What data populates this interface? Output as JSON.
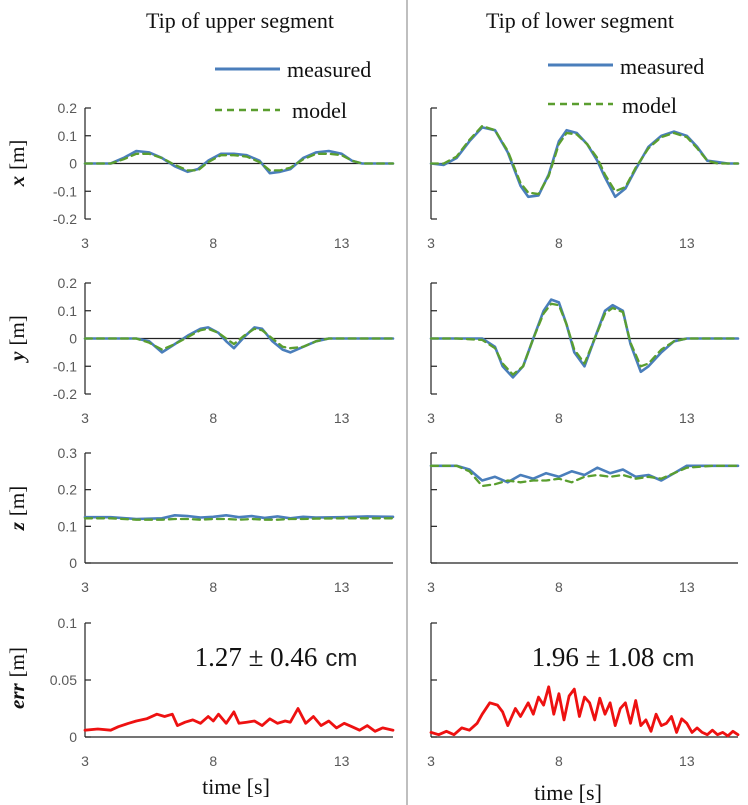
{
  "columns": [
    {
      "title": "Tip of upper segment"
    },
    {
      "title": "Tip of lower segment"
    }
  ],
  "xlabel": "time [s]",
  "legend": {
    "measured": "measured",
    "model": "model"
  },
  "colors": {
    "measured": "#4a7ebb",
    "model": "#5a9e2f",
    "error": "#ee1111",
    "divider": "#bfbfbf",
    "axis": "#222222",
    "tick": "#595959"
  },
  "row_labels": [
    {
      "var": "x",
      "unit": "[m]"
    },
    {
      "var": "y",
      "unit": "[m]"
    },
    {
      "var": "z",
      "unit": "[m]"
    },
    {
      "var": "err",
      "unit": "[m]"
    }
  ],
  "annotations": [
    {
      "value": "1.27 ± 0.46",
      "unit": "cm"
    },
    {
      "value": "1.96 ± 1.08",
      "unit": "cm"
    }
  ],
  "chart_data": [
    {
      "type": "line",
      "panel": "x-upper",
      "xlim": [
        3,
        15
      ],
      "ylim": [
        -0.2,
        0.2
      ],
      "xticks": [
        "3",
        "8",
        "13"
      ],
      "yticks": [
        "0.2",
        "0.1",
        "0",
        "-0.1",
        "-0.2"
      ],
      "legend": "top-right",
      "series": [
        {
          "name": "measured",
          "x": [
            3,
            4,
            4.5,
            5,
            5.5,
            6,
            6.5,
            7,
            7.4,
            7.8,
            8.3,
            8.8,
            9.3,
            9.8,
            10.2,
            10.6,
            11,
            11.5,
            12,
            12.5,
            13,
            13.4,
            13.8,
            14.2,
            14.6,
            15
          ],
          "y": [
            0,
            0,
            0.02,
            0.045,
            0.04,
            0.02,
            -0.01,
            -0.03,
            -0.02,
            0.01,
            0.035,
            0.035,
            0.03,
            0.01,
            -0.035,
            -0.03,
            -0.02,
            0.02,
            0.04,
            0.045,
            0.035,
            0.01,
            0,
            0,
            0,
            0
          ]
        },
        {
          "name": "model",
          "x": [
            3,
            4,
            4.5,
            5,
            5.5,
            6,
            6.5,
            7,
            7.4,
            7.8,
            8.3,
            8.8,
            9.3,
            9.8,
            10.2,
            10.6,
            11,
            11.5,
            12,
            12.5,
            13,
            13.4,
            13.8,
            14.2,
            14.6,
            15
          ],
          "y": [
            0,
            0,
            0.015,
            0.035,
            0.035,
            0.02,
            -0.005,
            -0.025,
            -0.025,
            0.005,
            0.03,
            0.03,
            0.025,
            0.005,
            -0.025,
            -0.025,
            -0.015,
            0.015,
            0.035,
            0.035,
            0.03,
            0.01,
            0,
            0,
            0,
            0
          ]
        }
      ]
    },
    {
      "type": "line",
      "panel": "x-lower",
      "xlim": [
        3,
        15
      ],
      "ylim": [
        -0.2,
        0.2
      ],
      "xticks": [
        "3",
        "8",
        "13"
      ],
      "yticks": [],
      "legend": "top-right",
      "series": [
        {
          "name": "measured",
          "x": [
            3,
            3.5,
            4,
            4.5,
            5,
            5.5,
            6,
            6.5,
            6.8,
            7.2,
            7.6,
            8,
            8.3,
            8.7,
            9.1,
            9.5,
            9.8,
            10.2,
            10.6,
            11,
            11.5,
            12,
            12.5,
            13,
            13.4,
            13.8,
            14.2,
            14.6,
            15
          ],
          "y": [
            0,
            -0.005,
            0.02,
            0.08,
            0.13,
            0.12,
            0.04,
            -0.08,
            -0.12,
            -0.115,
            -0.04,
            0.08,
            0.12,
            0.11,
            0.07,
            0.01,
            -0.05,
            -0.12,
            -0.09,
            -0.02,
            0.06,
            0.1,
            0.115,
            0.1,
            0.06,
            0.01,
            0.005,
            0,
            0
          ]
        },
        {
          "name": "model",
          "x": [
            3,
            3.5,
            4,
            4.5,
            5,
            5.5,
            6,
            6.5,
            6.8,
            7.2,
            7.6,
            8,
            8.3,
            8.7,
            9.1,
            9.5,
            9.8,
            10.2,
            10.6,
            11,
            11.5,
            12,
            12.5,
            13,
            13.4,
            13.8,
            14.2,
            14.6,
            15
          ],
          "y": [
            0,
            0,
            0.025,
            0.085,
            0.135,
            0.12,
            0.045,
            -0.07,
            -0.105,
            -0.11,
            -0.045,
            0.07,
            0.11,
            0.105,
            0.07,
            0.02,
            -0.04,
            -0.1,
            -0.085,
            -0.015,
            0.055,
            0.095,
            0.11,
            0.095,
            0.055,
            0.01,
            0,
            0,
            0
          ]
        }
      ]
    },
    {
      "type": "line",
      "panel": "y-upper",
      "xlim": [
        3,
        15
      ],
      "ylim": [
        -0.2,
        0.2
      ],
      "xticks": [
        "3",
        "8",
        "13"
      ],
      "yticks": [
        "0.2",
        "0.1",
        "0",
        "-0.1",
        "-0.2"
      ],
      "series": [
        {
          "name": "measured",
          "x": [
            3,
            4,
            5,
            5.5,
            6,
            6.5,
            7,
            7.5,
            7.8,
            8.2,
            8.5,
            8.8,
            9.2,
            9.6,
            9.9,
            10.3,
            10.7,
            11,
            11.5,
            12,
            12.5,
            13,
            13.5,
            14,
            14.5,
            15
          ],
          "y": [
            0,
            0,
            0,
            -0.01,
            -0.05,
            -0.02,
            0.01,
            0.035,
            0.04,
            0.02,
            -0.01,
            -0.035,
            0.005,
            0.04,
            0.035,
            -0.01,
            -0.04,
            -0.05,
            -0.03,
            -0.01,
            0,
            0,
            0,
            0,
            0,
            0
          ]
        },
        {
          "name": "model",
          "x": [
            3,
            4,
            5,
            5.5,
            6,
            6.5,
            7,
            7.5,
            7.8,
            8.2,
            8.5,
            8.8,
            9.2,
            9.6,
            9.9,
            10.3,
            10.7,
            11,
            11.5,
            12,
            12.5,
            13,
            13.5,
            14,
            14.5,
            15
          ],
          "y": [
            0,
            0,
            0,
            -0.015,
            -0.04,
            -0.02,
            0.005,
            0.03,
            0.035,
            0.02,
            0,
            -0.02,
            0.01,
            0.035,
            0.03,
            0,
            -0.03,
            -0.035,
            -0.03,
            -0.01,
            0,
            0,
            0,
            0,
            0,
            0
          ]
        }
      ]
    },
    {
      "type": "line",
      "panel": "y-lower",
      "xlim": [
        3,
        15
      ],
      "ylim": [
        -0.2,
        0.2
      ],
      "xticks": [
        "3",
        "8",
        "13"
      ],
      "yticks": [],
      "series": [
        {
          "name": "measured",
          "x": [
            3,
            4,
            5,
            5.5,
            5.8,
            6.2,
            6.6,
            7,
            7.4,
            7.7,
            8,
            8.3,
            8.6,
            9,
            9.4,
            9.8,
            10.1,
            10.5,
            10.8,
            11.2,
            11.5,
            12,
            12.5,
            13,
            13.5,
            14,
            14.5,
            15
          ],
          "y": [
            0,
            0,
            0,
            -0.03,
            -0.1,
            -0.14,
            -0.1,
            0,
            0.1,
            0.14,
            0.13,
            0.05,
            -0.05,
            -0.1,
            0,
            0.1,
            0.12,
            0.1,
            -0.02,
            -0.12,
            -0.1,
            -0.05,
            -0.01,
            0,
            0,
            0,
            0,
            0
          ]
        },
        {
          "name": "model",
          "x": [
            3,
            4,
            5,
            5.5,
            5.8,
            6.2,
            6.6,
            7,
            7.4,
            7.7,
            8,
            8.3,
            8.6,
            9,
            9.4,
            9.8,
            10.1,
            10.5,
            10.8,
            11.2,
            11.5,
            12,
            12.5,
            13,
            13.5,
            14,
            14.5,
            15
          ],
          "y": [
            0,
            0,
            -0.005,
            -0.035,
            -0.09,
            -0.13,
            -0.1,
            0,
            0.09,
            0.125,
            0.12,
            0.05,
            -0.04,
            -0.09,
            0,
            0.09,
            0.11,
            0.095,
            -0.015,
            -0.1,
            -0.09,
            -0.04,
            -0.01,
            0,
            0,
            0,
            0,
            0
          ]
        }
      ]
    },
    {
      "type": "line",
      "panel": "z-upper",
      "xlim": [
        3,
        15
      ],
      "ylim": [
        0,
        0.3
      ],
      "xticks": [
        "3",
        "8",
        "13"
      ],
      "yticks": [
        "0.3",
        "0.2",
        "0.1",
        "0"
      ],
      "series": [
        {
          "name": "measured",
          "x": [
            3,
            4,
            5,
            6,
            6.5,
            7,
            7.5,
            8,
            8.5,
            9,
            9.5,
            10,
            10.5,
            11,
            11.5,
            12,
            13,
            14,
            15
          ],
          "y": [
            0.125,
            0.125,
            0.12,
            0.122,
            0.13,
            0.128,
            0.124,
            0.126,
            0.13,
            0.125,
            0.128,
            0.123,
            0.127,
            0.122,
            0.126,
            0.124,
            0.125,
            0.127,
            0.126
          ]
        },
        {
          "name": "model",
          "x": [
            3,
            4,
            5,
            6,
            6.5,
            7,
            7.5,
            8,
            8.5,
            9,
            9.5,
            10,
            10.5,
            11,
            11.5,
            12,
            13,
            14,
            15
          ],
          "y": [
            0.122,
            0.122,
            0.118,
            0.118,
            0.12,
            0.12,
            0.118,
            0.12,
            0.12,
            0.118,
            0.12,
            0.118,
            0.118,
            0.12,
            0.12,
            0.121,
            0.122,
            0.122,
            0.122
          ]
        }
      ]
    },
    {
      "type": "line",
      "panel": "z-lower",
      "xlim": [
        3,
        15
      ],
      "ylim": [
        0,
        0.3
      ],
      "xticks": [
        "3",
        "8",
        "13"
      ],
      "yticks": [],
      "series": [
        {
          "name": "measured",
          "x": [
            3,
            4,
            4.5,
            5,
            5.5,
            6,
            6.5,
            7,
            7.5,
            8,
            8.5,
            9,
            9.5,
            10,
            10.5,
            11,
            11.5,
            12,
            12.5,
            13,
            14,
            15
          ],
          "y": [
            0.265,
            0.265,
            0.255,
            0.225,
            0.235,
            0.22,
            0.24,
            0.23,
            0.245,
            0.235,
            0.25,
            0.24,
            0.26,
            0.245,
            0.255,
            0.235,
            0.24,
            0.225,
            0.245,
            0.265,
            0.265,
            0.265
          ]
        },
        {
          "name": "model",
          "x": [
            3,
            4,
            4.5,
            5,
            5.5,
            6,
            6.5,
            7,
            7.5,
            8,
            8.5,
            9,
            9.5,
            10,
            10.5,
            11,
            11.5,
            12,
            12.5,
            13,
            14,
            15
          ],
          "y": [
            0.265,
            0.265,
            0.25,
            0.21,
            0.215,
            0.225,
            0.22,
            0.225,
            0.225,
            0.23,
            0.22,
            0.235,
            0.24,
            0.235,
            0.24,
            0.23,
            0.235,
            0.23,
            0.245,
            0.26,
            0.265,
            0.265
          ]
        }
      ]
    },
    {
      "type": "line",
      "panel": "err-upper",
      "xlim": [
        3,
        15
      ],
      "ylim": [
        0,
        0.1
      ],
      "xticks": [
        "3",
        "8",
        "13"
      ],
      "yticks": [
        "0.1",
        "0.05",
        "0"
      ],
      "series": [
        {
          "name": "err",
          "x": [
            3,
            3.5,
            4,
            4.3,
            4.7,
            5,
            5.4,
            5.8,
            6.1,
            6.4,
            6.6,
            6.9,
            7.2,
            7.5,
            7.8,
            8,
            8.2,
            8.5,
            8.8,
            9,
            9.3,
            9.6,
            9.9,
            10.2,
            10.5,
            10.8,
            11,
            11.3,
            11.6,
            11.9,
            12.2,
            12.5,
            12.8,
            13.1,
            13.4,
            13.7,
            14,
            14.3,
            14.6,
            15
          ],
          "y": [
            0.006,
            0.007,
            0.006,
            0.009,
            0.012,
            0.014,
            0.016,
            0.02,
            0.018,
            0.02,
            0.01,
            0.013,
            0.015,
            0.012,
            0.018,
            0.014,
            0.02,
            0.012,
            0.022,
            0.012,
            0.013,
            0.014,
            0.01,
            0.016,
            0.012,
            0.014,
            0.013,
            0.025,
            0.012,
            0.018,
            0.01,
            0.014,
            0.008,
            0.012,
            0.009,
            0.006,
            0.01,
            0.005,
            0.008,
            0.006
          ]
        }
      ]
    },
    {
      "type": "line",
      "panel": "err-lower",
      "xlim": [
        3,
        15
      ],
      "ylim": [
        0,
        0.1
      ],
      "xticks": [
        "3",
        "8",
        "13"
      ],
      "yticks": [],
      "series": [
        {
          "name": "err",
          "x": [
            3,
            3.3,
            3.6,
            3.9,
            4.2,
            4.5,
            4.8,
            5,
            5.3,
            5.6,
            5.8,
            6,
            6.3,
            6.5,
            6.8,
            7,
            7.2,
            7.4,
            7.6,
            7.8,
            8,
            8.2,
            8.4,
            8.6,
            8.8,
            9,
            9.2,
            9.4,
            9.6,
            9.8,
            10,
            10.2,
            10.4,
            10.6,
            10.8,
            11,
            11.2,
            11.4,
            11.6,
            11.8,
            12,
            12.2,
            12.4,
            12.6,
            12.8,
            13,
            13.2,
            13.4,
            13.6,
            13.8,
            14,
            14.2,
            14.4,
            14.6,
            14.8,
            15
          ],
          "y": [
            0.004,
            0.002,
            0.005,
            0.002,
            0.008,
            0.006,
            0.012,
            0.02,
            0.03,
            0.028,
            0.022,
            0.01,
            0.025,
            0.018,
            0.03,
            0.02,
            0.035,
            0.028,
            0.044,
            0.02,
            0.038,
            0.015,
            0.036,
            0.042,
            0.018,
            0.035,
            0.03,
            0.015,
            0.034,
            0.02,
            0.03,
            0.01,
            0.025,
            0.03,
            0.012,
            0.032,
            0.01,
            0.015,
            0.005,
            0.02,
            0.01,
            0.012,
            0.018,
            0.004,
            0.016,
            0.012,
            0.004,
            0.008,
            0.004,
            0.002,
            0.006,
            0.002,
            0.004,
            0.001,
            0.005,
            0.002
          ]
        }
      ]
    }
  ]
}
